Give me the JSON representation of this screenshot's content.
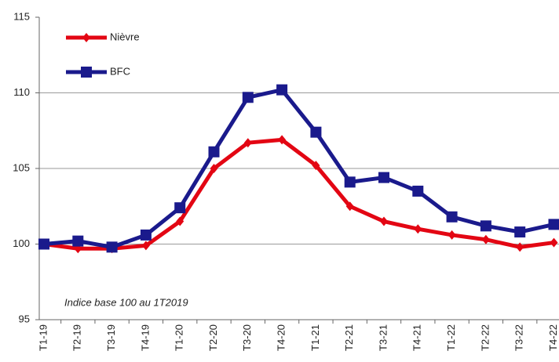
{
  "chart_data": {
    "type": "line",
    "annotation": "Indice base 100 au 1T2019",
    "categories": [
      "T1-19",
      "T2-19",
      "T3-19",
      "T4-19",
      "T1-20",
      "T2-20",
      "T3-20",
      "T4-20",
      "T1-21",
      "T2-21",
      "T3-21",
      "T4-21",
      "T1-22",
      "T2-22",
      "T3-22",
      "T4-22"
    ],
    "series": [
      {
        "name": "Nièvre",
        "color": "#e30613",
        "marker": "diamond",
        "values": [
          100,
          99.7,
          99.7,
          99.9,
          101.5,
          105,
          106.7,
          106.9,
          105.2,
          102.5,
          101.5,
          101,
          100.6,
          100.3,
          99.8,
          100.1
        ]
      },
      {
        "name": "BFC",
        "color": "#1a1a8c",
        "marker": "square",
        "values": [
          100,
          100.2,
          99.8,
          100.6,
          102.4,
          106.1,
          109.7,
          110.2,
          107.4,
          104.1,
          104.4,
          103.5,
          101.8,
          101.2,
          100.8,
          101.3
        ]
      }
    ],
    "ylim": [
      95,
      115
    ],
    "yticks": [
      95,
      100,
      105,
      110,
      115
    ],
    "grid": true,
    "legend": "upper left"
  }
}
